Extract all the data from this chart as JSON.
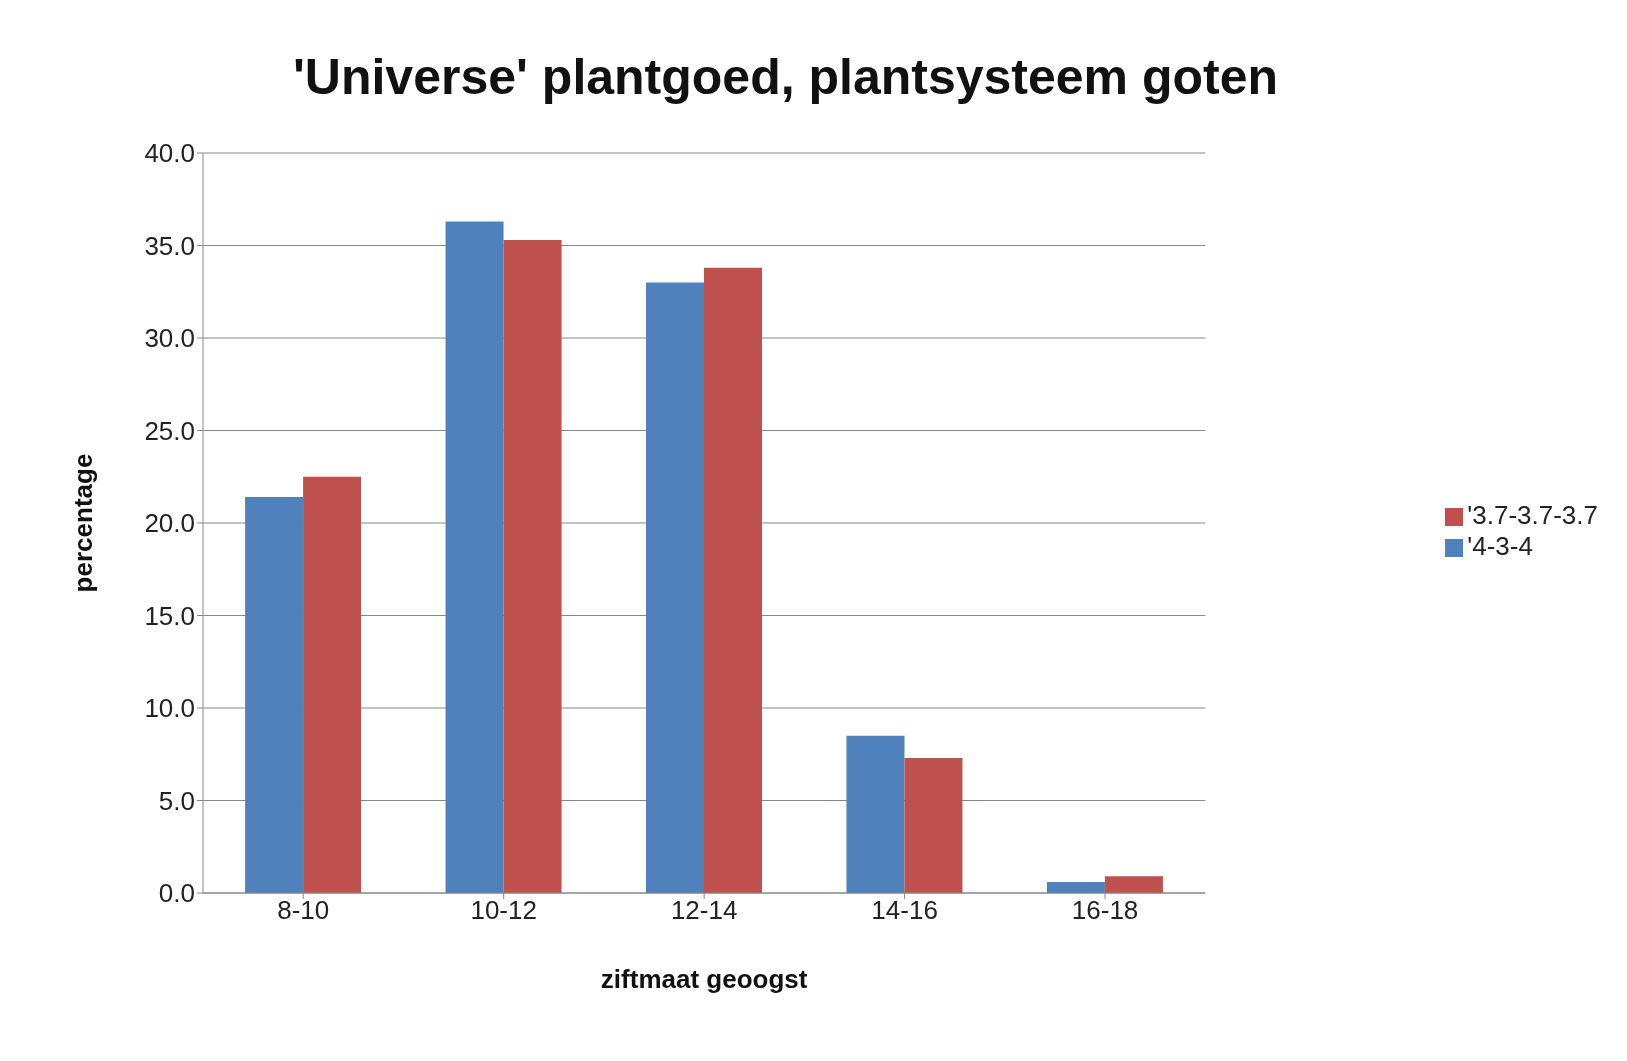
{
  "chart_data": {
    "type": "bar",
    "title": "'Universe' plantgoed, plantsysteem goten",
    "xlabel": "ziftmaat geoogst",
    "ylabel": "percentage",
    "categories": [
      "8-10",
      "10-12",
      "12-14",
      "14-16",
      "16-18"
    ],
    "series": [
      {
        "name": "'4-3-4",
        "color": "#4f81bd",
        "values": [
          21.4,
          36.3,
          33.0,
          8.5,
          0.6
        ]
      },
      {
        "name": "'3.7-3.7-3.7",
        "color": "#c0504d",
        "values": [
          22.5,
          35.3,
          33.8,
          7.3,
          0.9
        ]
      }
    ],
    "ylim": [
      0,
      40
    ],
    "yticks": [
      {
        "value": 0,
        "label": "0.0"
      },
      {
        "value": 5,
        "label": "5.0"
      },
      {
        "value": 10,
        "label": "10.0"
      },
      {
        "value": 15,
        "label": "15.0"
      },
      {
        "value": 20,
        "label": "20.0"
      },
      {
        "value": 25,
        "label": "25.0"
      },
      {
        "value": 30,
        "label": "30.0"
      },
      {
        "value": 35,
        "label": "35.0"
      },
      {
        "value": 40,
        "label": "40.0"
      }
    ],
    "grid": "y",
    "legend": "right"
  }
}
